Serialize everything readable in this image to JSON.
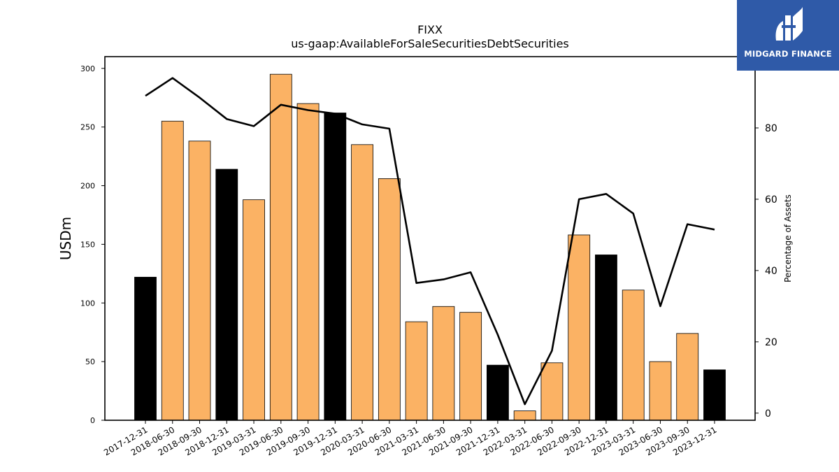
{
  "logo": {
    "text": "MIDGARD FINANCE",
    "color": "#2f5aa8"
  },
  "chart_data": {
    "type": "bar",
    "title": "FIXX",
    "subtitle": "us-gaap:AvailableForSaleSecuritiesDebtSecurities",
    "ylabel": "USDm",
    "y2label": "Percentage of Assets",
    "ylim": [
      0,
      310
    ],
    "y2lim": [
      -2,
      100
    ],
    "yticks": [
      0,
      50,
      100,
      150,
      200,
      250,
      300
    ],
    "y2ticks": [
      0,
      20,
      40,
      60,
      80
    ],
    "categories": [
      "2017-12-31",
      "2018-06-30",
      "2018-09-30",
      "2018-12-31",
      "2019-03-31",
      "2019-06-30",
      "2019-09-30",
      "2019-12-31",
      "2020-03-31",
      "2020-06-30",
      "2021-03-31",
      "2021-06-30",
      "2021-09-30",
      "2021-12-31",
      "2022-03-31",
      "2022-06-30",
      "2022-09-30",
      "2022-12-31",
      "2023-03-31",
      "2023-06-30",
      "2023-09-30",
      "2023-12-31"
    ],
    "series": [
      {
        "type": "bar",
        "axis": "left",
        "values": [
          122,
          255,
          238,
          214,
          188,
          295,
          270,
          262,
          235,
          206,
          84,
          97,
          92,
          47,
          8,
          49,
          158,
          141,
          111,
          50,
          74,
          43
        ],
        "colors": [
          "#000000",
          "#fbb264",
          "#fbb264",
          "#000000",
          "#fbb264",
          "#fbb264",
          "#fbb264",
          "#000000",
          "#fbb264",
          "#fbb264",
          "#fbb264",
          "#fbb264",
          "#fbb264",
          "#000000",
          "#fbb264",
          "#fbb264",
          "#fbb264",
          "#000000",
          "#fbb264",
          "#fbb264",
          "#fbb264",
          "#000000"
        ]
      },
      {
        "type": "line",
        "axis": "right",
        "color": "#000000",
        "values": [
          89,
          94,
          88.5,
          82.5,
          80.5,
          86.5,
          85,
          84,
          81,
          79.8,
          36.5,
          37.5,
          39.5,
          22,
          2.5,
          17.5,
          60,
          61.5,
          56,
          30,
          53,
          51.5
        ]
      }
    ],
    "grid": false
  }
}
